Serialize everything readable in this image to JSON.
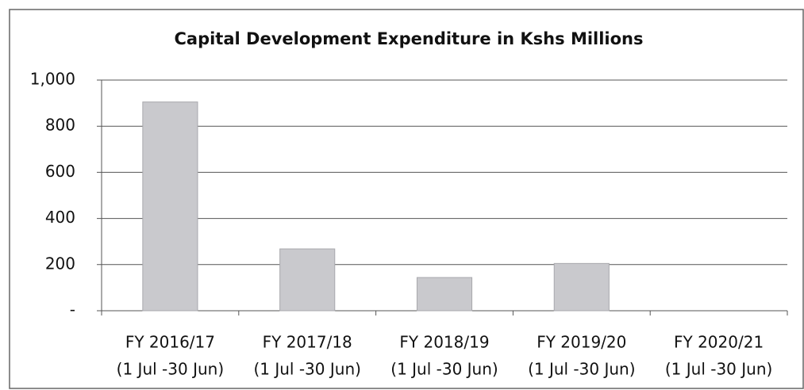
{
  "chart_data": {
    "type": "bar",
    "title": "Capital Development Expenditure in Kshs Millions",
    "categories": [
      [
        "FY 2016/17",
        "(1 Jul -30 Jun)"
      ],
      [
        "FY 2017/18",
        "(1 Jul -30 Jun)"
      ],
      [
        "FY 2018/19",
        "(1 Jul -30 Jun)"
      ],
      [
        "FY 2019/20",
        "(1 Jul -30 Jun)"
      ],
      [
        "FY 2020/21",
        "(1 Jul -30 Jun)"
      ]
    ],
    "values": [
      905,
      268,
      144,
      205,
      0
    ],
    "color": "#c9c9cd",
    "ylim": [
      0,
      1000
    ],
    "yticks": [
      {
        "value": 0,
        "label": "-"
      },
      200,
      400,
      600,
      800,
      {
        "value": 1000,
        "label": "1,000"
      }
    ],
    "grid": true
  }
}
